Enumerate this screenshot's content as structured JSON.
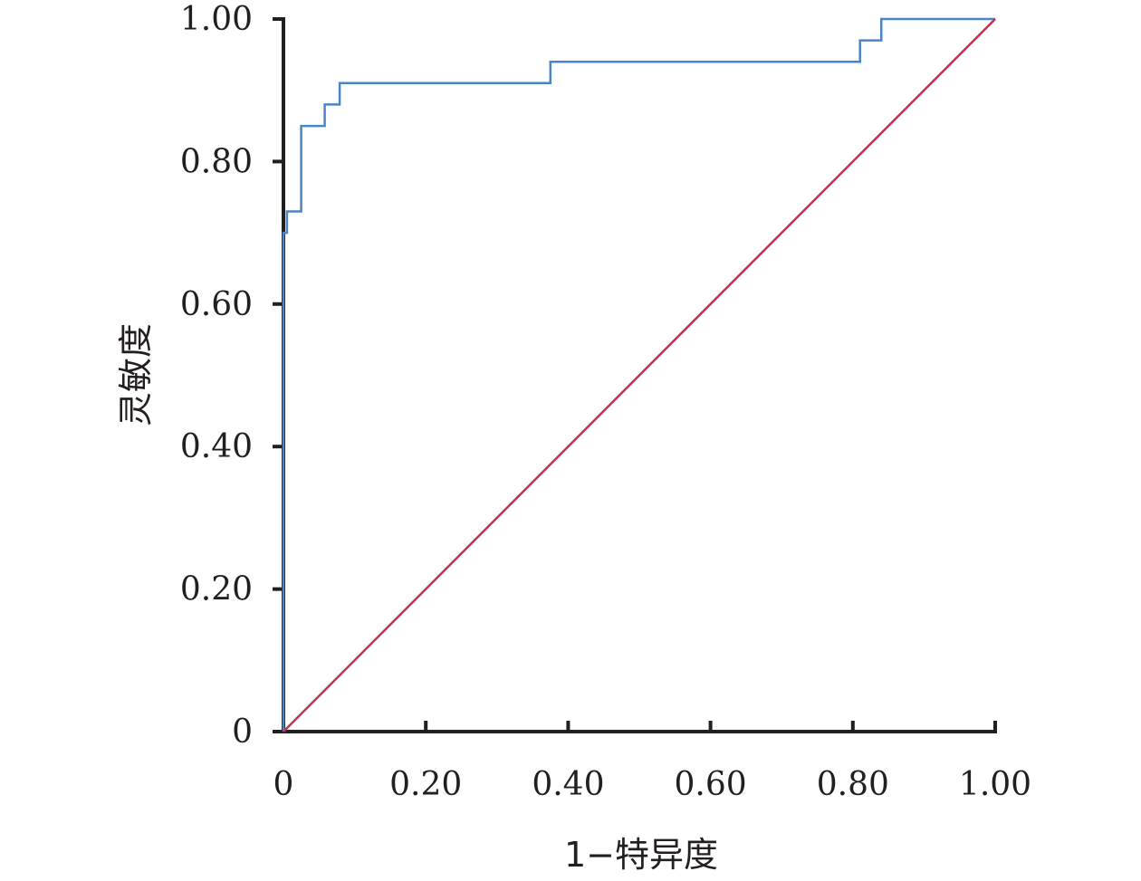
{
  "chart_data": {
    "type": "line",
    "title": "",
    "xlabel": "1−特异度",
    "ylabel": "灵敏度",
    "xlim": [
      0,
      1
    ],
    "ylim": [
      0,
      1
    ],
    "grid": false,
    "legend": "none",
    "x_ticks": [
      "0",
      "0.20",
      "0.40",
      "0.60",
      "0.80",
      "1.00"
    ],
    "y_ticks": [
      "0",
      "0.20",
      "0.40",
      "0.60",
      "0.80",
      "1.00"
    ],
    "series": [
      {
        "color": "#4a86c5",
        "points": [
          [
            0,
            0
          ],
          [
            0,
            0.7
          ],
          [
            0.005,
            0.7
          ],
          [
            0.005,
            0.73
          ],
          [
            0.025,
            0.73
          ],
          [
            0.025,
            0.85
          ],
          [
            0.058,
            0.85
          ],
          [
            0.058,
            0.88
          ],
          [
            0.079,
            0.88
          ],
          [
            0.079,
            0.91
          ],
          [
            0.375,
            0.91
          ],
          [
            0.375,
            0.94
          ],
          [
            0.81,
            0.94
          ],
          [
            0.81,
            0.97
          ],
          [
            0.84,
            0.97
          ],
          [
            0.84,
            1.0
          ],
          [
            1.0,
            1.0
          ]
        ]
      },
      {
        "color": "#c0334f",
        "points": [
          [
            0,
            0
          ],
          [
            1,
            1
          ]
        ]
      }
    ]
  }
}
